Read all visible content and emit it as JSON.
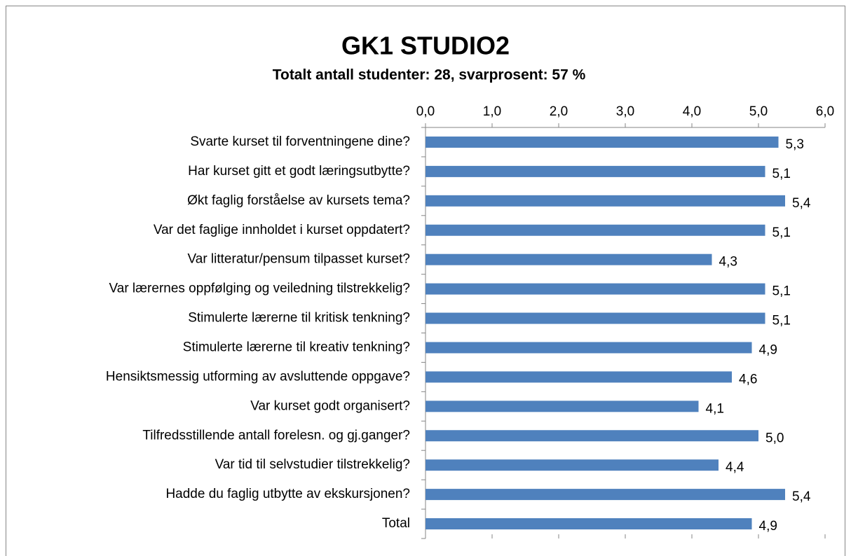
{
  "chart_data": {
    "type": "bar",
    "orientation": "horizontal",
    "title": "GK1 STUDIO2",
    "subtitle": "Totalt antall studenter: 28, svarprosent: 57 %",
    "categories": [
      "Svarte kurset til forventningene dine?",
      "Har kurset gitt et godt læringsutbytte?",
      "Økt faglig forståelse av kursets tema?",
      "Var det faglige innholdet i kurset oppdatert?",
      "Var litteratur/pensum tilpasset kurset?",
      "Var lærernes oppfølging og veiledning tilstrekkelig?",
      "Stimulerte lærerne til kritisk tenkning?",
      "Stimulerte lærerne til kreativ tenkning?",
      "Hensiktsmessig utforming av avsluttende oppgave?",
      "Var kurset godt organisert?",
      "Tilfredsstillende antall forelesn. og gj.ganger?",
      "Var tid til selvstudier tilstrekkelig?",
      "Hadde du faglig utbytte av ekskursjonen?",
      "Total"
    ],
    "values": [
      5.3,
      5.1,
      5.4,
      5.1,
      4.3,
      5.1,
      5.1,
      4.9,
      4.6,
      4.1,
      5.0,
      4.4,
      5.4,
      4.9
    ],
    "value_labels": [
      "5,3",
      "5,1",
      "5,4",
      "5,1",
      "4,3",
      "5,1",
      "5,1",
      "4,9",
      "4,6",
      "4,1",
      "5,0",
      "4,4",
      "5,4",
      "4,9"
    ],
    "color": "#4f81bd",
    "xlim": [
      0,
      6
    ],
    "xticks": [
      {
        "value": 0,
        "label": "0,0"
      },
      {
        "value": 1,
        "label": "1,0"
      },
      {
        "value": 2,
        "label": "2,0"
      },
      {
        "value": 3,
        "label": "3,0"
      },
      {
        "value": 4,
        "label": "4,0"
      },
      {
        "value": 5,
        "label": "5,0"
      },
      {
        "value": 6,
        "label": "6,0"
      }
    ],
    "grid": false
  }
}
